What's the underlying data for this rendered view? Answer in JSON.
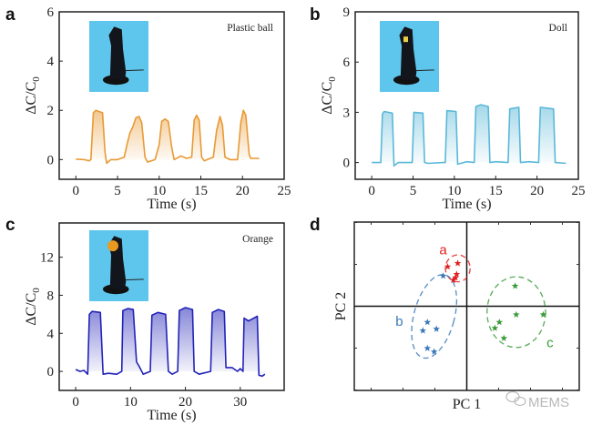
{
  "panel_letters": [
    "a",
    "b",
    "c",
    "d"
  ],
  "watermark": "MEMS",
  "chart_data": [
    {
      "type": "line",
      "panel": "a",
      "annotation": "Plastic ball",
      "xlabel": "Time (s)",
      "ylabel_main": "ΔC/C",
      "ylabel_sub": "0",
      "xlim": [
        -2,
        25
      ],
      "ylim": [
        -0.8,
        6
      ],
      "xticks": [
        0,
        5,
        10,
        15,
        20,
        25
      ],
      "yticks": [
        0,
        2,
        4,
        6
      ],
      "color": "#e89a35",
      "inset_photo": true,
      "points": [
        [
          0,
          0.02
        ],
        [
          1,
          0
        ],
        [
          1.6,
          -0.05
        ],
        [
          1.8,
          0
        ],
        [
          2.1,
          1.9
        ],
        [
          2.4,
          2.0
        ],
        [
          2.8,
          1.95
        ],
        [
          3.2,
          1.9
        ],
        [
          3.5,
          0.3
        ],
        [
          3.7,
          -0.15
        ],
        [
          4.2,
          0
        ],
        [
          5,
          0
        ],
        [
          5.8,
          0.1
        ],
        [
          6.2,
          0.7
        ],
        [
          6.5,
          1.1
        ],
        [
          6.8,
          1.3
        ],
        [
          7.2,
          1.7
        ],
        [
          7.6,
          1.75
        ],
        [
          7.9,
          1.5
        ],
        [
          8.3,
          0.1
        ],
        [
          8.6,
          -0.1
        ],
        [
          9.5,
          0
        ],
        [
          10,
          0.6
        ],
        [
          10.3,
          1.55
        ],
        [
          10.7,
          1.65
        ],
        [
          11.1,
          1.55
        ],
        [
          11.5,
          0.5
        ],
        [
          11.8,
          0
        ],
        [
          12.6,
          0.15
        ],
        [
          13.3,
          0.05
        ],
        [
          13.9,
          0.1
        ],
        [
          14.2,
          1.6
        ],
        [
          14.5,
          1.8
        ],
        [
          14.8,
          1.6
        ],
        [
          15.1,
          0.1
        ],
        [
          15.4,
          -0.05
        ],
        [
          16.5,
          0.1
        ],
        [
          16.9,
          1.2
        ],
        [
          17.3,
          1.75
        ],
        [
          17.6,
          1.4
        ],
        [
          17.9,
          0.1
        ],
        [
          18.5,
          0
        ],
        [
          19.4,
          0
        ],
        [
          19.8,
          1.5
        ],
        [
          20.1,
          2.0
        ],
        [
          20.4,
          1.8
        ],
        [
          20.8,
          0.2
        ],
        [
          21,
          0.05
        ],
        [
          22,
          0.05
        ]
      ]
    },
    {
      "type": "line",
      "panel": "b",
      "annotation": "Doll",
      "xlabel": "Time (s)",
      "ylabel_main": "ΔC/C",
      "ylabel_sub": "0",
      "xlim": [
        -2,
        25
      ],
      "ylim": [
        -1,
        9
      ],
      "xticks": [
        0,
        5,
        10,
        15,
        20,
        25
      ],
      "yticks": [
        0,
        3,
        6,
        9
      ],
      "color": "#5ab8d8",
      "inset_photo": true,
      "points": [
        [
          0,
          0
        ],
        [
          1.1,
          0
        ],
        [
          1.3,
          2.9
        ],
        [
          1.5,
          3.05
        ],
        [
          2.5,
          2.95
        ],
        [
          2.7,
          -0.2
        ],
        [
          3.2,
          0
        ],
        [
          4.5,
          0
        ],
        [
          4.9,
          0
        ],
        [
          5.1,
          3.0
        ],
        [
          6.2,
          2.95
        ],
        [
          6.4,
          0
        ],
        [
          6.8,
          -0.05
        ],
        [
          8.7,
          0
        ],
        [
          8.9,
          0
        ],
        [
          9.1,
          3.1
        ],
        [
          10.2,
          3.05
        ],
        [
          10.4,
          -0.1
        ],
        [
          11.5,
          0.05
        ],
        [
          12.4,
          0
        ],
        [
          12.6,
          3.35
        ],
        [
          13.2,
          3.45
        ],
        [
          14.1,
          3.35
        ],
        [
          14.3,
          0
        ],
        [
          15,
          0.05
        ],
        [
          16.5,
          0
        ],
        [
          16.7,
          3.2
        ],
        [
          17.8,
          3.3
        ],
        [
          18.0,
          0
        ],
        [
          19,
          0.05
        ],
        [
          20.2,
          0
        ],
        [
          20.4,
          3.3
        ],
        [
          22.0,
          3.2
        ],
        [
          22.2,
          0
        ],
        [
          23.5,
          -0.05
        ]
      ]
    },
    {
      "type": "line",
      "panel": "c",
      "annotation": "Orange",
      "xlabel": "Time (s)",
      "ylabel_main": "ΔC/C",
      "ylabel_sub": "0",
      "xlim": [
        -3,
        38
      ],
      "ylim": [
        -2,
        15.6
      ],
      "xticks": [
        0,
        10,
        20,
        30
      ],
      "yticks": [
        0,
        4,
        8,
        12
      ],
      "color": "#2323b8",
      "inset_photo": true,
      "points": [
        [
          0,
          0.2
        ],
        [
          0.8,
          0
        ],
        [
          1.5,
          0.1
        ],
        [
          2.2,
          -0.3
        ],
        [
          2.5,
          6.0
        ],
        [
          3,
          6.3
        ],
        [
          4.5,
          6.2
        ],
        [
          5.0,
          -0.3
        ],
        [
          6,
          -0.2
        ],
        [
          7.5,
          -0.3
        ],
        [
          8.4,
          0
        ],
        [
          8.6,
          6.4
        ],
        [
          9.5,
          6.6
        ],
        [
          10.5,
          6.5
        ],
        [
          11.1,
          1.0
        ],
        [
          11.6,
          0.5
        ],
        [
          12.3,
          -0.3
        ],
        [
          13.6,
          0
        ],
        [
          13.9,
          5.9
        ],
        [
          15,
          6.2
        ],
        [
          16.4,
          6.0
        ],
        [
          16.9,
          0
        ],
        [
          17.6,
          -0.3
        ],
        [
          18.6,
          0
        ],
        [
          18.9,
          6.4
        ],
        [
          20,
          6.7
        ],
        [
          21.3,
          6.5
        ],
        [
          21.6,
          0
        ],
        [
          22.5,
          -0.3
        ],
        [
          24.6,
          0
        ],
        [
          24.9,
          6.2
        ],
        [
          26,
          6.5
        ],
        [
          27.1,
          6.3
        ],
        [
          27.4,
          0.4
        ],
        [
          28.5,
          0.4
        ],
        [
          29.5,
          0
        ],
        [
          30,
          0.3
        ],
        [
          30.5,
          0
        ],
        [
          30.7,
          5.6
        ],
        [
          31.5,
          5.3
        ],
        [
          33.1,
          5.8
        ],
        [
          33.4,
          -0.4
        ],
        [
          34,
          -0.5
        ],
        [
          34.5,
          -0.3
        ]
      ]
    },
    {
      "type": "scatter",
      "panel": "d",
      "xlabel": "PC 1",
      "ylabel": "PC 2",
      "xlim": [
        -1,
        1
      ],
      "ylim": [
        -1,
        1
      ],
      "marker": "star",
      "groups": [
        {
          "name": "a",
          "color": "#e02020",
          "points": [
            [
              -0.17,
              0.47
            ],
            [
              -0.08,
              0.51
            ],
            [
              -0.09,
              0.38
            ],
            [
              -0.12,
              0.31
            ],
            [
              -0.1,
              0.34
            ]
          ],
          "ellipse": {
            "cx": -0.08,
            "cy": 0.45,
            "rx": 0.11,
            "ry": 0.16,
            "angle": 0
          },
          "label_pos": [
            -0.21,
            0.67
          ]
        },
        {
          "name": "b",
          "color": "#3a78b8",
          "points": [
            [
              -0.21,
              0.36
            ],
            [
              -0.35,
              -0.19
            ],
            [
              -0.39,
              -0.29
            ],
            [
              -0.27,
              -0.27
            ],
            [
              -0.35,
              -0.5
            ],
            [
              -0.29,
              -0.54
            ]
          ],
          "ellipse": {
            "cx": -0.29,
            "cy": -0.12,
            "rx": 0.18,
            "ry": 0.51,
            "angle": 15
          },
          "label_pos": [
            -0.6,
            -0.18
          ]
        },
        {
          "name": "c",
          "color": "#3a9a3a",
          "points": [
            [
              0.43,
              0.24
            ],
            [
              0.44,
              -0.1
            ],
            [
              0.68,
              -0.1
            ],
            [
              0.29,
              -0.19
            ],
            [
              0.25,
              -0.26
            ],
            [
              0.33,
              -0.38
            ]
          ],
          "ellipse": {
            "cx": 0.44,
            "cy": -0.07,
            "rx": 0.26,
            "ry": 0.42,
            "angle": 0
          },
          "label_pos": [
            0.74,
            -0.43
          ]
        }
      ]
    }
  ]
}
